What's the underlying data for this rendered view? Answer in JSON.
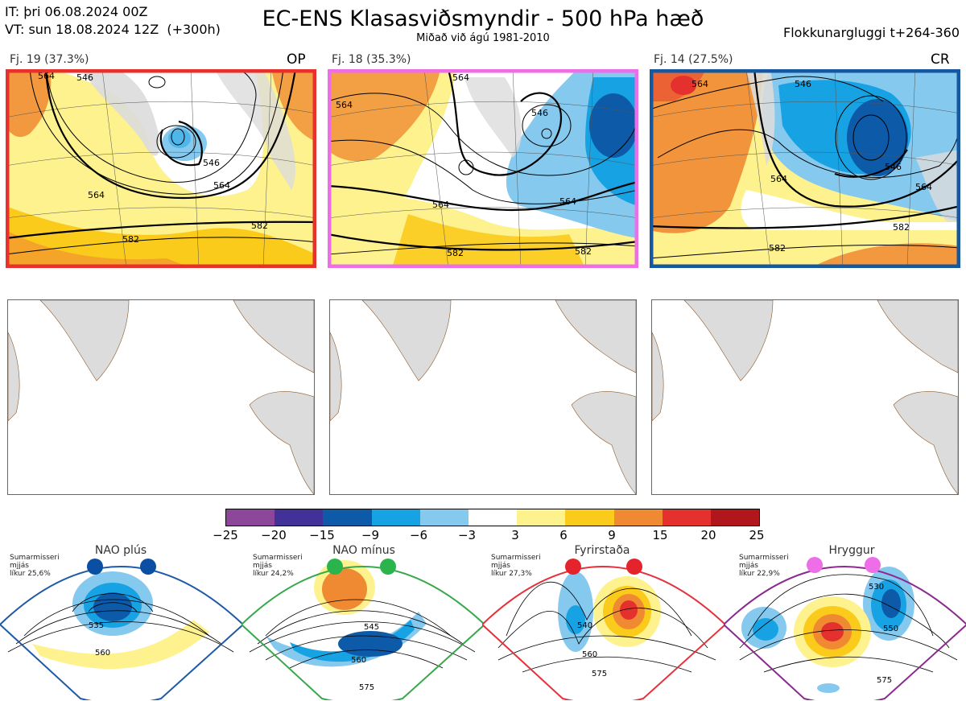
{
  "header": {
    "it_line": "IT: þri 06.08.2024 00Z",
    "vt_line": "VT: sun 18.08.2024 12Z  (+300h)",
    "title": "EC-ENS Klasasviðsmyndir - 500 hPa hæð",
    "subtitle": "Miðað við ágú 1981-2010",
    "window": "Flokkunargluggi t+264-360"
  },
  "clusters": [
    {
      "label": "Fj. 19 (37.3%)",
      "tag": "OP",
      "border_color": "#e8312c",
      "contour_labels": [
        "564",
        "546",
        "564",
        "582",
        "582",
        "546",
        "564"
      ]
    },
    {
      "label": "Fj. 18 (35.3%)",
      "tag": "",
      "border_color": "#ee6ee8",
      "contour_labels": [
        "564",
        "564",
        "546",
        "564",
        "564",
        "582",
        "582"
      ]
    },
    {
      "label": "Fj. 14 (27.5%)",
      "tag": "CR",
      "border_color": "#1558a0",
      "contour_labels": [
        "564",
        "546",
        "546",
        "564",
        "564",
        "582",
        "582"
      ]
    }
  ],
  "colorbar": {
    "ticks": [
      "−25",
      "−20",
      "−15",
      "−9",
      "−6",
      "−3",
      "3",
      "6",
      "9",
      "15",
      "20",
      "25"
    ],
    "colors": [
      "#8c469a",
      "#43319a",
      "#0d5aa8",
      "#17a3e3",
      "#86c9ef",
      "#ffffff",
      "#fdf28e",
      "#fbcb1c",
      "#f08a32",
      "#e5312e",
      "#b0161b"
    ]
  },
  "regimes": [
    {
      "name": "NAO plús",
      "desc": "Sumarmisseri\nmjjás\nlíkur 25,6%",
      "dot_color": "#0a4fa3",
      "frame_color": "#1f5aa6",
      "contour_labels": [
        "535",
        "560"
      ]
    },
    {
      "name": "NAO mínus",
      "desc": "Sumarmisseri\nmjjás\nlíkur 24,2%",
      "dot_color": "#2bb34c",
      "frame_color": "#36a84a",
      "contour_labels": [
        "545",
        "560",
        "575"
      ]
    },
    {
      "name": "Fyrirstaða",
      "desc": "Sumarmisseri\nmjjás\nlíkur 27,3%",
      "dot_color": "#e5232c",
      "frame_color": "#e5313b",
      "contour_labels": [
        "540",
        "560",
        "575"
      ]
    },
    {
      "name": "Hryggur",
      "desc": "Sumarmisseri\nmjjás\nlíkur 22,9%",
      "dot_color": "#ee6ee8",
      "frame_color": "#8b2a8e",
      "contour_labels": [
        "530",
        "550",
        "575"
      ]
    }
  ]
}
